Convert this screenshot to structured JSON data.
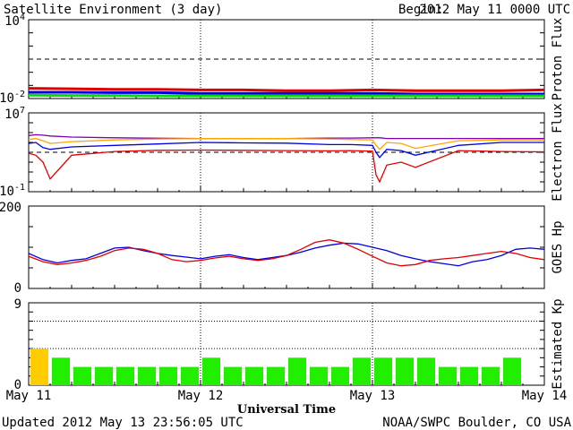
{
  "header": {
    "title": "Satellite Environment (3 day)",
    "begin_label": "Begin:",
    "begin_value": "2012 May 11 0000 UTC"
  },
  "footer": {
    "updated": "Updated 2012 May 13 23:56:05 UTC",
    "credit": "NOAA/SWPC Boulder, CO USA"
  },
  "colors": {
    "red": "#e00000",
    "blue": "#0000e0",
    "green": "#00e000",
    "orange": "#ffa500",
    "purple": "#7a00b0",
    "kp_green": "#22ee00",
    "kp_yellow": "#ffcc00"
  },
  "chart_data": [
    {
      "type": "line",
      "ylabel": "Proton Flux",
      "y_scale": "log",
      "ylim": [
        0.01,
        10000
      ],
      "y_ticks": [
        {
          "label_base": "10",
          "label_exp": "4"
        },
        {
          "label_base": "10",
          "label_exp": "-2"
        }
      ],
      "threshold": 10,
      "x": [
        0,
        6,
        12,
        18,
        24,
        30,
        36,
        42,
        48,
        54,
        60,
        66,
        72
      ],
      "series": [
        {
          "color": "#e00000",
          "values": [
            0.06,
            0.055,
            0.05,
            0.05,
            0.045,
            0.045,
            0.04,
            0.04,
            0.045,
            0.04,
            0.04,
            0.04,
            0.045
          ]
        },
        {
          "color": "#0000e0",
          "values": [
            0.03,
            0.03,
            0.028,
            0.028,
            0.025,
            0.025,
            0.025,
            0.025,
            0.025,
            0.022,
            0.022,
            0.022,
            0.022
          ]
        },
        {
          "color": "#00e000",
          "values": [
            0.018,
            0.017,
            0.017,
            0.016,
            0.016,
            0.016,
            0.016,
            0.016,
            0.016,
            0.016,
            0.016,
            0.016,
            0.016
          ]
        }
      ]
    },
    {
      "type": "line",
      "ylabel": "Electron Flux",
      "y_scale": "log",
      "ylim": [
        0.1,
        10000000
      ],
      "y_ticks": [
        {
          "label_base": "10",
          "label_exp": "7"
        },
        {
          "label_base": "10",
          "label_exp": "-1"
        }
      ],
      "threshold": 1000,
      "x": [
        0,
        1,
        2,
        3,
        6,
        12,
        18,
        24,
        30,
        36,
        42,
        45,
        48,
        48.5,
        49,
        50,
        52,
        54,
        60,
        66,
        72
      ],
      "series": [
        {
          "color": "#7a00b0",
          "values": [
            50000,
            60000,
            55000,
            45000,
            35000,
            30000,
            27000,
            25000,
            25000,
            25000,
            28000,
            28000,
            30000,
            30000,
            30000,
            25000,
            25000,
            25000,
            25000,
            25000,
            25000
          ]
        },
        {
          "color": "#ffa500",
          "values": [
            20000,
            25000,
            15000,
            8000,
            12000,
            18000,
            22000,
            25000,
            25000,
            25000,
            22000,
            20000,
            18000,
            5000,
            2000,
            10000,
            8000,
            2500,
            15000,
            18000,
            18000
          ]
        },
        {
          "color": "#0000e0",
          "values": [
            8000,
            10000,
            3000,
            2000,
            3500,
            5000,
            7000,
            10000,
            9000,
            8500,
            6000,
            6000,
            5000,
            1000,
            300,
            2000,
            1500,
            500,
            5000,
            10000,
            10000
          ]
        },
        {
          "color": "#e00000",
          "values": [
            800,
            500,
            100,
            2,
            500,
            1200,
            1600,
            1700,
            1600,
            1500,
            1400,
            1500,
            1300,
            5,
            1,
            50,
            100,
            30,
            1500,
            1200,
            1100
          ]
        }
      ]
    },
    {
      "type": "line",
      "ylabel": "GOES Hp",
      "y_scale": "linear",
      "ylim": [
        0,
        200
      ],
      "y_ticks": [
        {
          "label": "200",
          "value": 200
        },
        {
          "label": "0",
          "value": 0
        }
      ],
      "x": [
        0,
        2,
        4,
        6,
        8,
        10,
        12,
        14,
        16,
        18,
        20,
        22,
        24,
        26,
        28,
        30,
        32,
        34,
        36,
        38,
        40,
        42,
        44,
        46,
        48,
        50,
        52,
        54,
        56,
        58,
        60,
        62,
        64,
        66,
        68,
        70,
        72
      ],
      "series": [
        {
          "color": "#0000e0",
          "values": [
            85,
            70,
            62,
            68,
            72,
            85,
            98,
            100,
            92,
            85,
            80,
            76,
            72,
            78,
            82,
            75,
            70,
            75,
            80,
            88,
            98,
            105,
            110,
            108,
            100,
            92,
            80,
            72,
            65,
            60,
            55,
            65,
            70,
            80,
            95,
            98,
            95
          ]
        },
        {
          "color": "#e00000",
          "values": [
            78,
            65,
            58,
            62,
            68,
            78,
            92,
            98,
            95,
            85,
            70,
            65,
            68,
            74,
            78,
            72,
            68,
            72,
            80,
            95,
            112,
            118,
            110,
            95,
            78,
            62,
            55,
            58,
            68,
            72,
            75,
            80,
            85,
            90,
            85,
            75,
            70
          ]
        }
      ]
    },
    {
      "type": "bar",
      "ylabel": "Estimated Kp",
      "ylim": [
        0,
        9
      ],
      "y_ticks": [
        {
          "label": "9",
          "value": 9
        },
        {
          "label": "0",
          "value": 0
        }
      ],
      "bar_width_hours": 3,
      "values": [
        4,
        3,
        2,
        2,
        2,
        2,
        2,
        2,
        3,
        2,
        2,
        2,
        3,
        2,
        2,
        3,
        3,
        3,
        3,
        2,
        2,
        2,
        3
      ],
      "highlight_threshold": 4,
      "x_tick_labels": [
        "May 11",
        "May 12",
        "May 13",
        "May 14"
      ],
      "xlabel": "Universal Time"
    }
  ]
}
